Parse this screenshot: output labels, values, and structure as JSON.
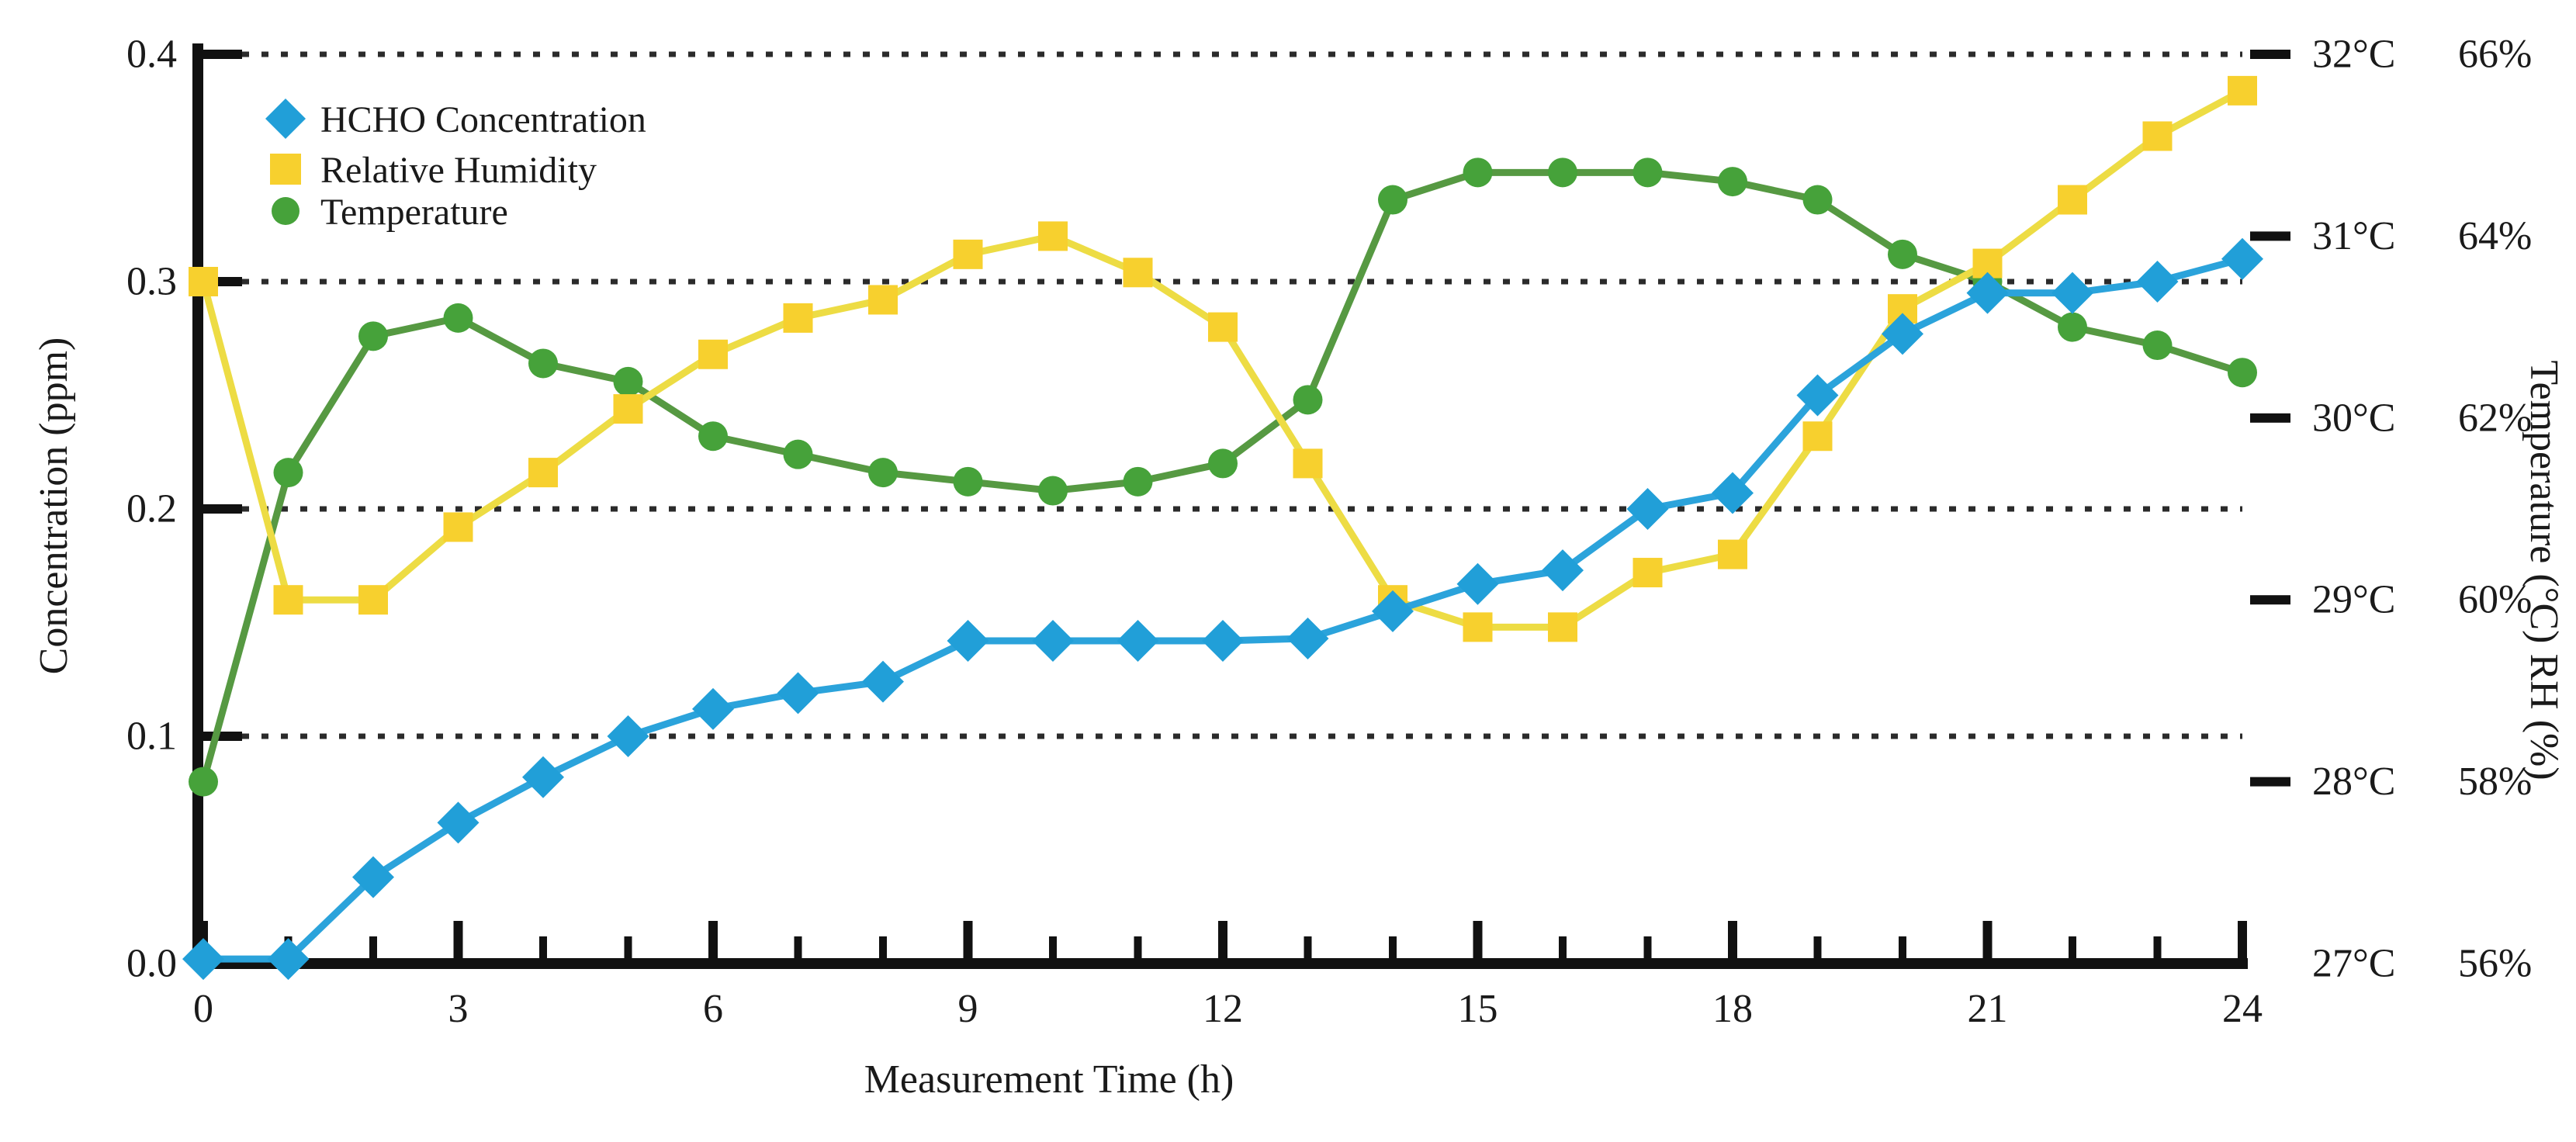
{
  "page": {
    "background": "#ffffff"
  },
  "chart_data": {
    "type": "line",
    "title": "",
    "xlabel": "Measurement Time (h)",
    "ylabel_left": "Concentration (ppm)",
    "ylabel_right": "Temperature (°C) RH (%)",
    "grid": "horizontal dotted lines at 0.1, 0.2, 0.3, 0.4 ppm",
    "legend_position": "top-left inside plot",
    "xlim": [
      0,
      24
    ],
    "x_tick_hours": [
      0,
      3,
      6,
      9,
      12,
      15,
      18,
      21,
      24
    ],
    "x_tick_labels": [
      "0",
      "3",
      "6",
      "9",
      "12",
      "15",
      "18",
      "21",
      "24"
    ],
    "x_minor_tick_every_hours": 1,
    "left_axis": {
      "lim": [
        0.0,
        0.4
      ],
      "grid_values": [
        0.1,
        0.2,
        0.3,
        0.4
      ],
      "ticks": [
        {
          "value": 0.0,
          "label": "0.0"
        },
        {
          "value": 0.1,
          "label": "0.1"
        },
        {
          "value": 0.2,
          "label": "0.2"
        },
        {
          "value": 0.3,
          "label": "0.3"
        },
        {
          "value": 0.4,
          "label": "0.4"
        }
      ]
    },
    "right_axis": {
      "temp_lim": [
        27,
        32
      ],
      "rh_lim": [
        56,
        66
      ],
      "ticks": [
        {
          "temp_c": 27,
          "temp_label": "27°C",
          "rh_label": "56%"
        },
        {
          "temp_c": 28,
          "temp_label": "28°C",
          "rh_label": "58%"
        },
        {
          "temp_c": 29,
          "temp_label": "29°C",
          "rh_label": "60%"
        },
        {
          "temp_c": 30,
          "temp_label": "30°C",
          "rh_label": "62%"
        },
        {
          "temp_c": 31,
          "temp_label": "31°C",
          "rh_label": "64%"
        },
        {
          "temp_c": 32,
          "temp_label": "32°C",
          "rh_label": "66%"
        }
      ]
    },
    "x_hours": [
      0,
      1,
      2,
      3,
      4,
      5,
      6,
      7,
      8,
      9,
      10,
      11,
      12,
      13,
      14,
      15,
      16,
      17,
      18,
      19,
      20,
      21,
      22,
      23,
      24
    ],
    "series": [
      {
        "name": "HCHO Concentration",
        "axis": "left",
        "unit": "ppm",
        "marker": "diamond",
        "marker_color": "#219FD8",
        "line_color": "#2BA3DB",
        "values": [
          0.002,
          0.002,
          0.038,
          0.062,
          0.082,
          0.1,
          0.112,
          0.119,
          0.124,
          0.142,
          0.142,
          0.142,
          0.142,
          0.143,
          0.155,
          0.167,
          0.173,
          0.2,
          0.207,
          0.25,
          0.277,
          0.295,
          0.295,
          0.3,
          0.31
        ]
      },
      {
        "name": "Relative Humidity",
        "axis": "right_rh",
        "unit": "%",
        "marker": "square",
        "marker_color": "#F7D02E",
        "line_color": "#EDDC44",
        "values": [
          63.5,
          60.0,
          60.0,
          60.8,
          61.4,
          62.1,
          62.7,
          63.1,
          63.3,
          63.8,
          64.0,
          63.6,
          63.0,
          61.5,
          60.0,
          59.7,
          59.7,
          60.3,
          60.5,
          61.8,
          63.2,
          63.7,
          64.4,
          65.1,
          65.6
        ]
      },
      {
        "name": "Temperature",
        "axis": "right_temp",
        "unit": "°C",
        "marker": "circle",
        "marker_color": "#46A23A",
        "line_color": "#569942",
        "values": [
          28.0,
          29.7,
          30.45,
          30.55,
          30.3,
          30.2,
          29.9,
          29.8,
          29.7,
          29.65,
          29.6,
          29.65,
          29.75,
          30.1,
          31.2,
          31.35,
          31.35,
          31.35,
          31.3,
          31.2,
          30.9,
          30.75,
          30.5,
          30.4,
          30.25
        ]
      }
    ],
    "colors": {
      "axis": "#111111",
      "gridline": "#2b2b2b",
      "text": "#1a1a1a",
      "background": "#ffffff"
    }
  }
}
